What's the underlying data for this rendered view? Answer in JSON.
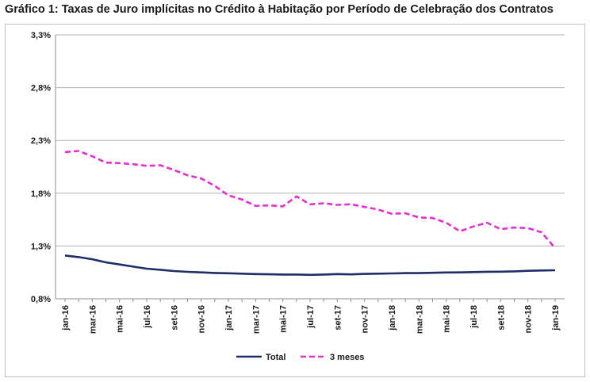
{
  "chart_data": {
    "type": "line",
    "title": "Gráfico 1: Taxas de Juro implícitas no Crédito à Habitação por Período de Celebração dos Contratos",
    "ylim": [
      0.8,
      3.3
    ],
    "yticks": [
      "0,8%",
      "1,3%",
      "1,8%",
      "2,3%",
      "2,8%",
      "3,3%"
    ],
    "yticks_values": [
      0.8,
      1.3,
      1.8,
      2.3,
      2.8,
      3.3
    ],
    "x": [
      "jan-16",
      "fev-16",
      "mar-16",
      "abr-16",
      "mai-16",
      "jun-16",
      "jul-16",
      "ago-16",
      "set-16",
      "out-16",
      "nov-16",
      "dez-16",
      "jan-17",
      "fev-17",
      "mar-17",
      "abr-17",
      "mai-17",
      "jun-17",
      "jul-17",
      "ago-17",
      "set-17",
      "out-17",
      "nov-17",
      "dez-17",
      "jan-18",
      "fev-18",
      "mar-18",
      "abr-18",
      "mai-18",
      "jun-18",
      "jul-18",
      "ago-18",
      "set-18",
      "out-18",
      "nov-18",
      "dez-18",
      "jan-19"
    ],
    "xtick_labels": [
      "jan-16",
      "mar-16",
      "mai-16",
      "jul-16",
      "set-16",
      "nov-16",
      "jan-17",
      "mar-17",
      "mai-17",
      "jul-17",
      "set-17",
      "nov-17",
      "jan-18",
      "mar-18",
      "mai-18",
      "jul-18",
      "set-18",
      "nov-18",
      "jan-19"
    ],
    "grid": true,
    "legend_position": "bottom",
    "series": [
      {
        "name": "Total",
        "color": "#1f2d6b",
        "style": "solid",
        "values": [
          1.21,
          1.195,
          1.175,
          1.145,
          1.125,
          1.105,
          1.085,
          1.075,
          1.063,
          1.055,
          1.05,
          1.045,
          1.042,
          1.038,
          1.034,
          1.032,
          1.03,
          1.03,
          1.027,
          1.03,
          1.034,
          1.031,
          1.036,
          1.038,
          1.04,
          1.043,
          1.043,
          1.046,
          1.049,
          1.05,
          1.053,
          1.056,
          1.057,
          1.06,
          1.065,
          1.068,
          1.07
        ]
      },
      {
        "name": "3 meses",
        "color": "#e62ed2",
        "style": "dashed",
        "values": [
          2.19,
          2.2,
          2.15,
          2.09,
          2.085,
          2.075,
          2.06,
          2.065,
          2.02,
          1.97,
          1.94,
          1.87,
          1.78,
          1.74,
          1.68,
          1.685,
          1.675,
          1.77,
          1.695,
          1.705,
          1.69,
          1.695,
          1.67,
          1.645,
          1.605,
          1.61,
          1.57,
          1.565,
          1.52,
          1.44,
          1.485,
          1.52,
          1.46,
          1.475,
          1.47,
          1.43,
          1.28
        ]
      }
    ]
  }
}
